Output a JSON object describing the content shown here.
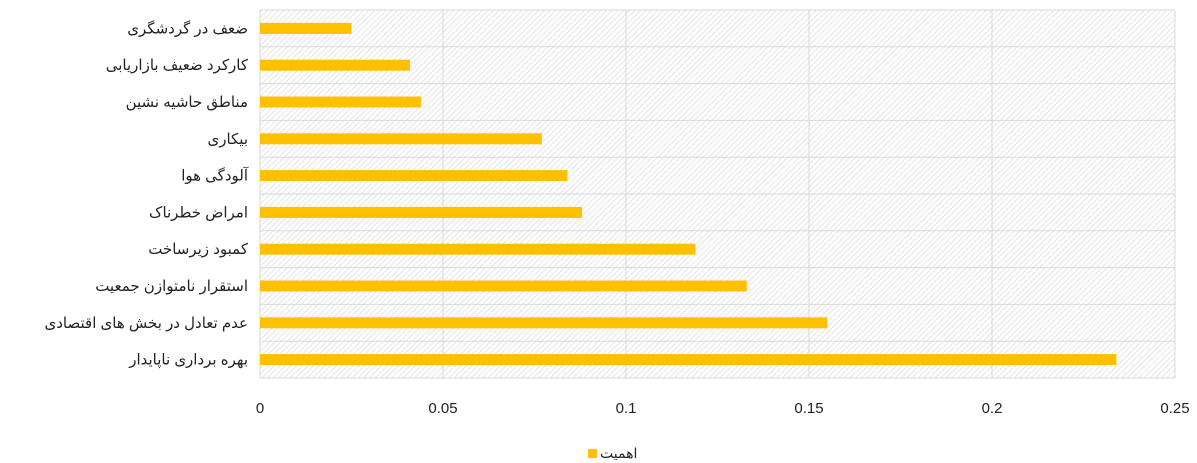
{
  "chart_data": {
    "type": "bar",
    "orientation": "horizontal",
    "categories": [
      "ضعف در گردشگری",
      "کارکرد ضعیف بازاریابی",
      "مناطق حاشیه نشین",
      "بیکاری",
      "آلودگی هوا",
      "امراض خطرناک",
      "کمبود زیرساخت",
      "استقرار نامتوازن جمعیت",
      "عدم تعادل در بخش های اقتصادی",
      "بهره برداری ناپایدار"
    ],
    "series": [
      {
        "name": "اهمیت",
        "color": "#FFC000",
        "values": [
          0.025,
          0.041,
          0.044,
          0.077,
          0.084,
          0.088,
          0.119,
          0.133,
          0.155,
          0.234
        ]
      }
    ],
    "xlim": [
      0,
      0.25
    ],
    "x_ticks": [
      "0",
      "0.05",
      "0.1",
      "0.15",
      "0.2",
      "0.25"
    ],
    "x_tick_values": [
      0,
      0.05,
      0.1,
      0.15,
      0.2,
      0.25
    ],
    "grid": true,
    "plot_background": "hatched-gray",
    "legend_position": "bottom"
  }
}
